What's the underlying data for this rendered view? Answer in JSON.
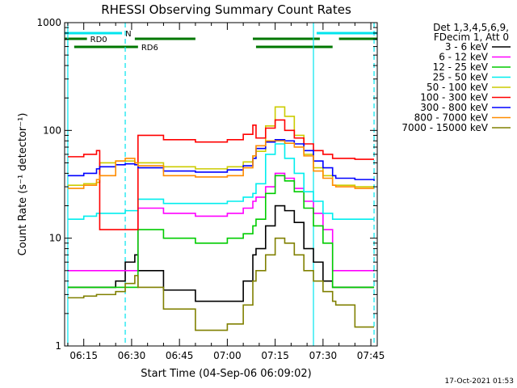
{
  "chart_data": {
    "type": "line",
    "title": "RHESSI Observing Summary Count Rates",
    "xlabel": "Start Time (04-Sep-06 06:09:02)",
    "ylabel": "Count Rate (s⁻¹ detector⁻¹)",
    "y_scale": "log",
    "ylim": [
      1,
      1000
    ],
    "xlim": [
      "06:09",
      "07:47"
    ],
    "y_ticks": [
      "1",
      "10",
      "100",
      "1000"
    ],
    "x_ticks": [
      "06:15",
      "06:30",
      "06:45",
      "07:00",
      "07:15",
      "07:30",
      "07:45"
    ],
    "legend_header": [
      "Det 1,3,4,5,6,9,",
      "FDecim 1, Att 0"
    ],
    "legend_position": "right",
    "timestamp": "17-Oct-2021 01:53",
    "annotations": [
      "N",
      "RD0",
      "RD6"
    ],
    "flag_bars": [
      {
        "label": "N",
        "color": "#00e5ee",
        "segments": [
          [
            "06:09",
            "06:27"
          ],
          [
            "07:28",
            "07:47"
          ]
        ]
      },
      {
        "label": "RD0",
        "color": "#007700",
        "segments": [
          [
            "06:09",
            "06:16"
          ],
          [
            "06:31",
            "06:50"
          ],
          [
            "07:08",
            "07:29"
          ],
          [
            "07:35",
            "07:47"
          ]
        ]
      },
      {
        "label": "RD6",
        "color": "#007700",
        "segments": [
          [
            "06:12",
            "06:32"
          ],
          [
            "07:09",
            "07:33"
          ]
        ]
      }
    ],
    "vertical_lines": [
      {
        "time": "06:10",
        "color": "#00e5ee",
        "style": "solid"
      },
      {
        "time": "06:28",
        "color": "#00e5ee",
        "style": "dashed"
      },
      {
        "time": "07:27",
        "color": "#00e5ee",
        "style": "solid"
      },
      {
        "time": "07:46",
        "color": "#00e5ee",
        "style": "dashed"
      }
    ],
    "x": [
      "06:10",
      "06:15",
      "06:19",
      "06:20",
      "06:25",
      "06:28",
      "06:31",
      "06:32",
      "06:40",
      "06:50",
      "07:00",
      "07:05",
      "07:08",
      "07:09",
      "07:12",
      "07:15",
      "07:18",
      "07:21",
      "07:24",
      "07:27",
      "07:30",
      "07:33",
      "07:34",
      "07:40",
      "07:46"
    ],
    "series": [
      {
        "name": "3 - 6 keV",
        "color": "#000000",
        "values": [
          3.5,
          3.5,
          3.5,
          3.5,
          4,
          6,
          7,
          5,
          3.3,
          2.6,
          2.6,
          4,
          7,
          8,
          13,
          20,
          18,
          14,
          8,
          6,
          4,
          3.5,
          3.5,
          3.5,
          3.5
        ]
      },
      {
        "name": "6 - 12 keV",
        "color": "#ff00ff",
        "values": [
          5,
          5,
          5,
          5,
          5,
          5,
          5,
          19,
          17,
          16,
          17,
          19,
          22,
          24,
          30,
          40,
          36,
          29,
          22,
          17,
          12,
          5,
          5,
          5,
          5
        ]
      },
      {
        "name": "12 - 25 keV",
        "color": "#00cc00",
        "values": [
          3.5,
          3.5,
          3.5,
          3.5,
          3.5,
          3.5,
          3.5,
          12,
          10,
          9,
          10,
          11,
          13,
          15,
          26,
          38,
          34,
          27,
          19,
          13,
          9,
          3.5,
          3.5,
          3.5,
          3.5
        ]
      },
      {
        "name": "25 - 50 keV",
        "color": "#00eeee",
        "values": [
          15,
          16,
          17,
          17,
          17,
          18,
          18,
          23,
          21,
          21,
          22,
          24,
          26,
          32,
          60,
          75,
          55,
          40,
          27,
          22,
          17,
          15,
          15,
          15,
          15
        ]
      },
      {
        "name": "50 - 100 keV",
        "color": "#cccc00",
        "values": [
          31,
          32,
          33,
          50,
          52,
          52,
          50,
          50,
          46,
          44,
          46,
          51,
          58,
          64,
          110,
          165,
          135,
          90,
          60,
          45,
          38,
          31,
          31,
          30,
          30
        ]
      },
      {
        "name": "100 - 300 keV",
        "color": "#ff0000",
        "values": [
          57,
          60,
          65,
          12,
          12,
          12,
          12,
          90,
          82,
          78,
          82,
          92,
          112,
          85,
          105,
          125,
          100,
          85,
          75,
          65,
          60,
          55,
          55,
          54,
          54
        ]
      },
      {
        "name": "300 - 800 keV",
        "color": "#0000ff",
        "values": [
          38,
          40,
          44,
          46,
          48,
          49,
          48,
          45,
          42,
          41,
          43,
          47,
          55,
          68,
          78,
          82,
          80,
          75,
          65,
          52,
          45,
          38,
          36,
          35,
          34
        ]
      },
      {
        "name": "800 - 7000 keV",
        "color": "#ff8c00",
        "values": [
          29,
          31,
          35,
          38,
          52,
          55,
          50,
          47,
          38,
          37,
          38,
          45,
          58,
          72,
          80,
          80,
          76,
          70,
          58,
          42,
          36,
          31,
          30,
          29,
          29
        ]
      },
      {
        "name": "7000 - 15000 keV",
        "color": "#808000",
        "values": [
          2.8,
          2.9,
          3.0,
          3.0,
          3.2,
          3.8,
          4.5,
          3.5,
          2.2,
          1.4,
          1.6,
          2.4,
          4.0,
          5.0,
          7.0,
          10,
          9,
          7,
          5,
          4,
          3.2,
          2.6,
          2.4,
          1.5,
          1.5
        ]
      }
    ]
  }
}
